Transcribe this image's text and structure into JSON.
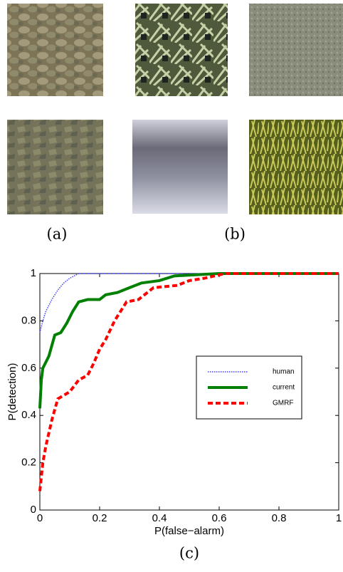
{
  "captions": [
    "(a)",
    "(b)",
    "(c)"
  ],
  "chart_data": {
    "type": "line",
    "xlabel": "P(false−alarm)",
    "ylabel": "P(detection)",
    "xlim": [
      0,
      1
    ],
    "ylim": [
      0,
      1
    ],
    "xticks": [
      0,
      0.2,
      0.4,
      0.6,
      0.8,
      1
    ],
    "yticks": [
      0,
      0.2,
      0.4,
      0.6,
      0.8,
      1
    ],
    "grid": false,
    "series": [
      {
        "name": "human",
        "color": "#4040ff",
        "line_style": "dotted",
        "line_width": 1.5,
        "x": [
          0,
          0.01,
          0.02,
          0.04,
          0.06,
          0.08,
          0.1,
          0.13,
          1
        ],
        "values": [
          0.75,
          0.8,
          0.84,
          0.89,
          0.93,
          0.96,
          0.98,
          1,
          1
        ]
      },
      {
        "name": "current",
        "color": "#008000",
        "line_style": "solid",
        "line_width": 4,
        "x": [
          0,
          0.005,
          0.01,
          0.03,
          0.05,
          0.07,
          0.09,
          0.11,
          0.13,
          0.16,
          0.2,
          0.22,
          0.26,
          0.3,
          0.34,
          0.4,
          0.45,
          0.6,
          1
        ],
        "values": [
          0.43,
          0.55,
          0.6,
          0.65,
          0.74,
          0.75,
          0.79,
          0.84,
          0.88,
          0.89,
          0.89,
          0.91,
          0.92,
          0.94,
          0.96,
          0.97,
          0.99,
          1,
          1
        ]
      },
      {
        "name": "GMRF",
        "color": "#ff0000",
        "line_style": "dashed",
        "line_width": 4,
        "x": [
          0,
          0.01,
          0.02,
          0.04,
          0.06,
          0.1,
          0.13,
          0.16,
          0.18,
          0.2,
          0.22,
          0.25,
          0.29,
          0.33,
          0.38,
          0.46,
          0.5,
          0.55,
          0.62,
          1
        ],
        "values": [
          0.08,
          0.2,
          0.27,
          0.38,
          0.47,
          0.5,
          0.55,
          0.57,
          0.62,
          0.68,
          0.72,
          0.8,
          0.88,
          0.89,
          0.94,
          0.95,
          0.97,
          0.98,
          1,
          1
        ]
      }
    ]
  }
}
